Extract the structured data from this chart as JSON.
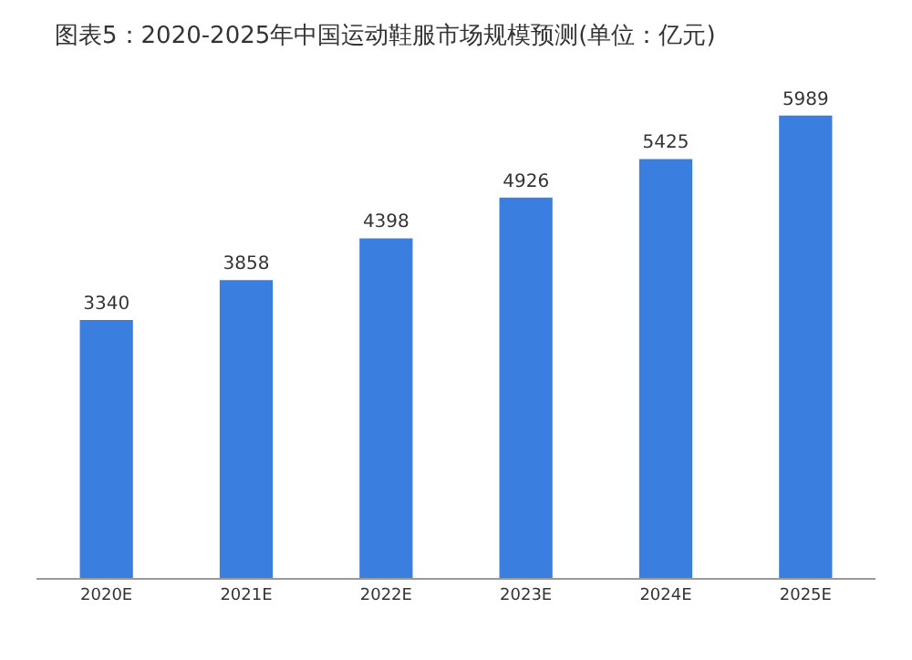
{
  "chart_data": {
    "type": "bar",
    "title": "图表5：2020-2025年中国运动鞋服市场规模预测(单位：亿元)",
    "categories": [
      "2020E",
      "2021E",
      "2022E",
      "2023E",
      "2024E",
      "2025E"
    ],
    "values": [
      3340,
      3858,
      4398,
      4926,
      5425,
      5989
    ],
    "color": "#3a7fe0",
    "data_labels": true
  }
}
